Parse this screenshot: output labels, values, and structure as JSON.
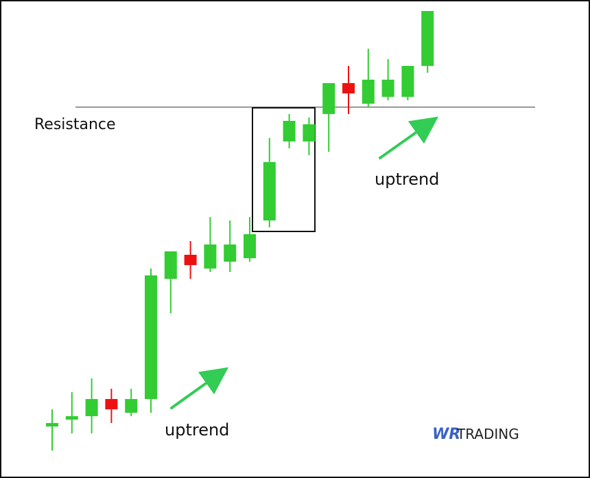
{
  "chart_data": {
    "type": "candlestick",
    "colors": {
      "up": "#33cc33",
      "down": "#ee1111",
      "arrow": "#33cc55"
    },
    "resistance": {
      "label": "Resistance",
      "price": 540
    },
    "candles": [
      {
        "o": 75,
        "h": 100,
        "l": 40,
        "c": 80
      },
      {
        "o": 85,
        "h": 125,
        "l": 65,
        "c": 90
      },
      {
        "o": 90,
        "h": 145,
        "l": 65,
        "c": 115
      },
      {
        "o": 115,
        "h": 130,
        "l": 80,
        "c": 100
      },
      {
        "o": 95,
        "h": 130,
        "l": 90,
        "c": 115
      },
      {
        "o": 115,
        "h": 305,
        "l": 95,
        "c": 295
      },
      {
        "o": 290,
        "h": 330,
        "l": 240,
        "c": 330
      },
      {
        "o": 325,
        "h": 345,
        "l": 290,
        "c": 310
      },
      {
        "o": 305,
        "h": 380,
        "l": 300,
        "c": 340
      },
      {
        "o": 315,
        "h": 375,
        "l": 300,
        "c": 340
      },
      {
        "o": 320,
        "h": 380,
        "l": 315,
        "c": 355
      },
      {
        "o": 375,
        "h": 495,
        "l": 365,
        "c": 460
      },
      {
        "o": 490,
        "h": 530,
        "l": 480,
        "c": 520
      },
      {
        "o": 490,
        "h": 525,
        "l": 470,
        "c": 515
      },
      {
        "o": 530,
        "h": 575,
        "l": 475,
        "c": 575
      },
      {
        "o": 575,
        "h": 600,
        "l": 530,
        "c": 560
      },
      {
        "o": 545,
        "h": 625,
        "l": 540,
        "c": 580
      },
      {
        "o": 555,
        "h": 610,
        "l": 550,
        "c": 580
      },
      {
        "o": 555,
        "h": 595,
        "l": 550,
        "c": 600
      },
      {
        "o": 600,
        "h": 680,
        "l": 590,
        "c": 680
      }
    ],
    "annotations": {
      "uptrend_low": "uptrend",
      "uptrend_high": "uptrend"
    }
  },
  "logo": {
    "mark": "WR",
    "text": "TRADING",
    "mark_color": "#3b63c4",
    "text_color": "#222222"
  }
}
